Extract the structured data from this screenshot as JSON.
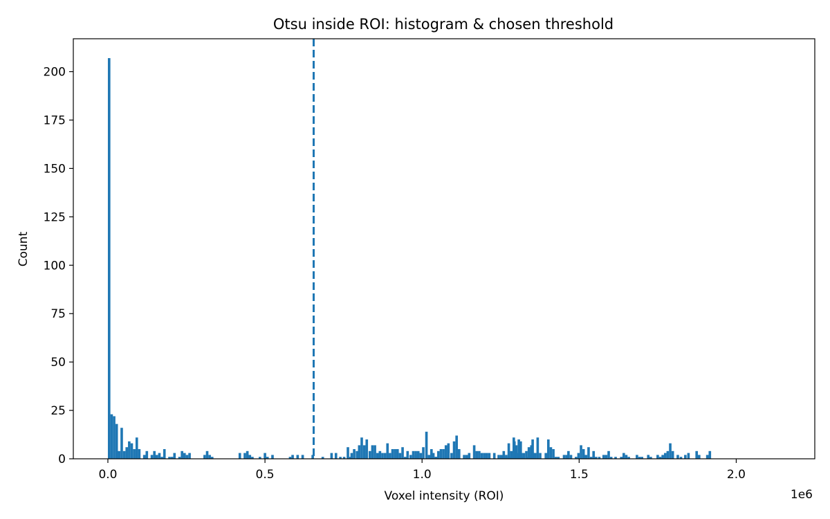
{
  "chart_data": {
    "type": "bar",
    "title": "Otsu inside ROI: histogram & chosen threshold",
    "xlabel": "Voxel intensity (ROI)",
    "ylabel": "Count",
    "x_offset_label": "1e6",
    "x_scale": 1000000,
    "xlim": [
      -110000,
      2250000
    ],
    "ylim": [
      0,
      217
    ],
    "xticks": [
      0,
      500000,
      1000000,
      1500000,
      2000000
    ],
    "xtick_labels": [
      "0.0",
      "0.5",
      "1.0",
      "1.5",
      "2.0"
    ],
    "yticks": [
      0,
      25,
      50,
      75,
      100,
      125,
      150,
      175,
      200
    ],
    "ytick_labels": [
      "0",
      "25",
      "50",
      "75",
      "100",
      "125",
      "150",
      "175",
      "200"
    ],
    "grid": false,
    "bar_color": "#1f77b4",
    "threshold": {
      "value": 655000,
      "style": "dashed",
      "color": "#1f77b4"
    },
    "bins": {
      "start": 0,
      "width": 8000,
      "counts": [
        207,
        23,
        22,
        18,
        4,
        16,
        4,
        6,
        9,
        8,
        5,
        11,
        5,
        0,
        2,
        4,
        0,
        2,
        4,
        2,
        3,
        1,
        5,
        0,
        1,
        1,
        3,
        0,
        1,
        4,
        3,
        2,
        3,
        0,
        0,
        0,
        0,
        0,
        2,
        4,
        2,
        1,
        0,
        0,
        0,
        0,
        0,
        0,
        0,
        0,
        0,
        0,
        3,
        0,
        3,
        4,
        2,
        1,
        0,
        0,
        1,
        0,
        3,
        1,
        0,
        2,
        0,
        0,
        0,
        0,
        0,
        0,
        1,
        2,
        0,
        2,
        0,
        2,
        0,
        0,
        0,
        2,
        0,
        0,
        0,
        1,
        0,
        0,
        0,
        0,
        0,
        0,
        0,
        0,
        0,
        0,
        1,
        0,
        0,
        0,
        0,
        0,
        0,
        0,
        0,
        0,
        0,
        0,
        0,
        0,
        0,
        0,
        0,
        0,
        0,
        0,
        0,
        0,
        0,
        0,
        0,
        0,
        2,
        0,
        0,
        0,
        0,
        0,
        0,
        3,
        1,
        0,
        0,
        0,
        0,
        1,
        0,
        0,
        0,
        0,
        0,
        0,
        0,
        0,
        0,
        0,
        0,
        0,
        0,
        0,
        0,
        0,
        0,
        0,
        0,
        0,
        1,
        0,
        1,
        1,
        4,
        11,
        7,
        10,
        3,
        3,
        4,
        6,
        7,
        3,
        0,
        0,
        0,
        0,
        0,
        0,
        0,
        0,
        0,
        0,
        0,
        0,
        0,
        0,
        0,
        0,
        0,
        0,
        0,
        0,
        0,
        0,
        0,
        0,
        0,
        0,
        0,
        0,
        0,
        0,
        0,
        0,
        0,
        0,
        0,
        0,
        0,
        0,
        0,
        0,
        0,
        0,
        0,
        0,
        0,
        0,
        0,
        0,
        0,
        0,
        0,
        0,
        0,
        0,
        0,
        0,
        0,
        0,
        0,
        0,
        0,
        0,
        0,
        0,
        0,
        0,
        0,
        0,
        0,
        0,
        0,
        0,
        0,
        0,
        0,
        0,
        0,
        0,
        0,
        0,
        0,
        0,
        0,
        0,
        0,
        0,
        0,
        0,
        0,
        0,
        0,
        0,
        0,
        0,
        0,
        0,
        0,
        0,
        0,
        0,
        0,
        0,
        0,
        0,
        0,
        0,
        0,
        0,
        0,
        0,
        0,
        0,
        0,
        0,
        0,
        0,
        0,
        0,
        0,
        0,
        0,
        0
      ]
    },
    "bars_right": [
      [
        708000,
        3
      ],
      [
        722000,
        3
      ],
      [
        736000,
        1
      ],
      [
        748000,
        1
      ],
      [
        760000,
        6
      ],
      [
        772000,
        3
      ],
      [
        780000,
        5
      ],
      [
        789000,
        4
      ],
      [
        796000,
        7
      ],
      [
        804000,
        11
      ],
      [
        812000,
        7
      ],
      [
        820000,
        10
      ],
      [
        830000,
        4
      ],
      [
        838000,
        7
      ],
      [
        846000,
        7
      ],
      [
        854000,
        3
      ],
      [
        862000,
        4
      ],
      [
        870000,
        3
      ],
      [
        878000,
        3
      ],
      [
        886000,
        8
      ],
      [
        894000,
        3
      ],
      [
        902000,
        5
      ],
      [
        910000,
        5
      ],
      [
        918000,
        5
      ],
      [
        926000,
        3
      ],
      [
        934000,
        6
      ],
      [
        942000,
        1
      ],
      [
        950000,
        4
      ],
      [
        960000,
        2
      ],
      [
        968000,
        4
      ],
      [
        976000,
        4
      ],
      [
        984000,
        4
      ],
      [
        992000,
        3
      ],
      [
        1000000,
        6
      ],
      [
        1010000,
        14
      ],
      [
        1018000,
        2
      ],
      [
        1026000,
        5
      ],
      [
        1040000,
        1
      ],
      [
        1048000,
        4
      ],
      [
        1056000,
        5
      ],
      [
        1064000,
        5
      ],
      [
        1072000,
        7
      ],
      [
        1080000,
        8
      ],
      [
        1090000,
        3
      ],
      [
        1098000,
        9
      ],
      [
        1106000,
        12
      ],
      [
        1114000,
        5
      ],
      [
        1130000,
        2
      ],
      [
        1138000,
        2
      ],
      [
        1146000,
        3
      ],
      [
        1162000,
        7
      ],
      [
        1170000,
        4
      ],
      [
        1178000,
        4
      ],
      [
        1186000,
        3
      ],
      [
        1194000,
        3
      ],
      [
        1202000,
        3
      ],
      [
        1210000,
        3
      ],
      [
        1226000,
        3
      ],
      [
        1240000,
        2
      ],
      [
        1248000,
        2
      ],
      [
        1256000,
        4
      ],
      [
        1264000,
        2
      ],
      [
        1272000,
        8
      ],
      [
        1280000,
        3
      ],
      [
        1290000,
        9
      ],
      [
        1298000,
        3
      ],
      [
        1310000,
        9
      ],
      [
        1318000,
        1
      ],
      [
        1334000,
        1
      ],
      [
        1342000,
        2
      ],
      [
        1348000,
        10
      ],
      [
        1356000,
        3
      ],
      [
        1364000,
        11
      ],
      [
        1372000,
        3
      ],
      [
        1390000,
        3
      ],
      [
        1398000,
        10
      ],
      [
        1406000,
        6
      ],
      [
        1414000,
        5
      ],
      [
        1422000,
        1
      ],
      [
        1430000,
        1
      ],
      [
        1448000,
        2
      ],
      [
        1456000,
        2
      ],
      [
        1462000,
        4
      ],
      [
        1470000,
        2
      ],
      [
        1486000,
        1
      ],
      [
        1494000,
        3
      ],
      [
        1502000,
        7
      ],
      [
        1510000,
        5
      ],
      [
        1518000,
        2
      ],
      [
        1526000,
        6
      ],
      [
        1534000,
        1
      ],
      [
        1542000,
        4
      ],
      [
        1550000,
        1
      ],
      [
        1560000,
        1
      ],
      [
        1574000,
        2
      ],
      [
        1582000,
        2
      ],
      [
        1590000,
        4
      ],
      [
        1598000,
        1
      ],
      [
        1612000,
        1
      ],
      [
        1630000,
        1
      ],
      [
        1638000,
        3
      ],
      [
        1646000,
        2
      ],
      [
        1654000,
        1
      ],
      [
        1680000,
        2
      ],
      [
        1688000,
        1
      ],
      [
        1696000,
        1
      ],
      [
        1716000,
        2
      ],
      [
        1724000,
        1
      ],
      [
        1746000,
        2
      ],
      [
        1754000,
        1
      ],
      [
        1762000,
        2
      ],
      [
        1770000,
        3
      ],
      [
        1778000,
        4
      ],
      [
        1786000,
        8
      ],
      [
        1794000,
        4
      ],
      [
        1810000,
        2
      ],
      [
        1820000,
        1
      ],
      [
        1834000,
        2
      ],
      [
        1844000,
        3
      ],
      [
        1870000,
        4
      ],
      [
        1878000,
        2
      ],
      [
        1904000,
        2
      ],
      [
        1912000,
        4
      ]
    ]
  }
}
